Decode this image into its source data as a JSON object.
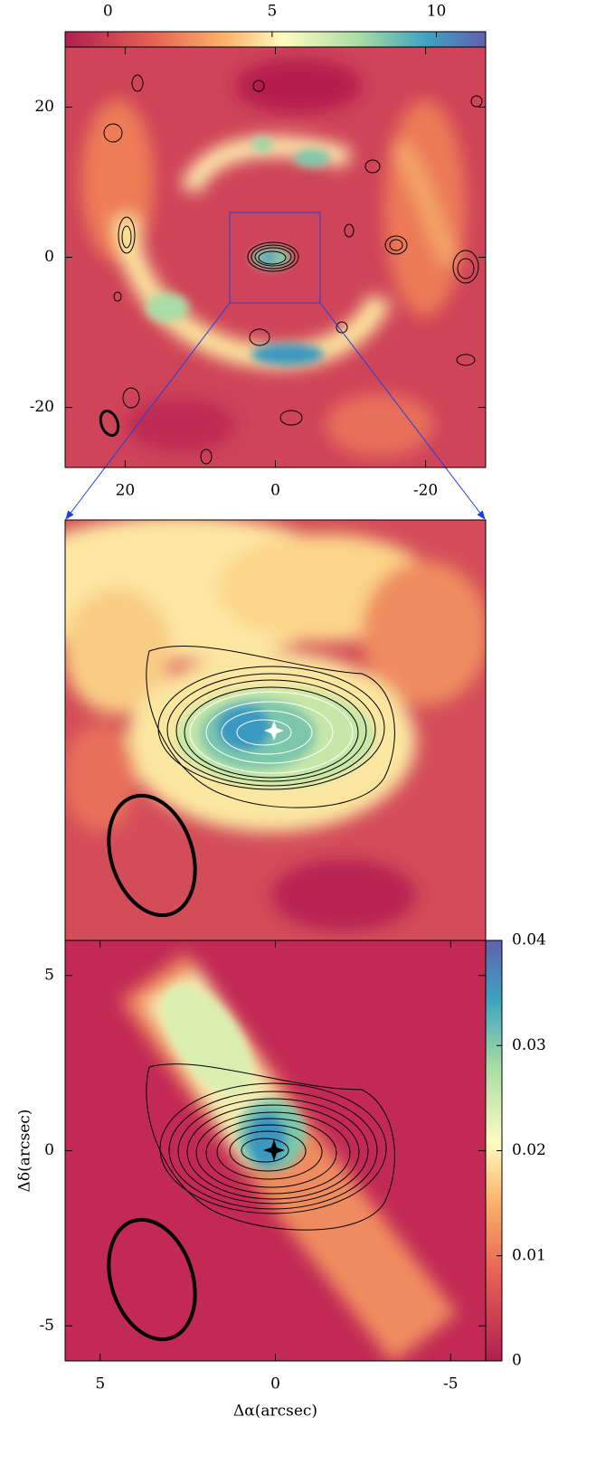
{
  "chart_data": [
    {
      "type": "image",
      "xlim": [
        28,
        -28
      ],
      "ylim": [
        -28,
        28
      ],
      "xticks": [
        20,
        0,
        -20
      ],
      "yticks": [
        20,
        0,
        -20
      ],
      "colorbar": {
        "lim": [
          -1.3,
          11.5
        ],
        "ticks": [
          0,
          5,
          10
        ]
      }
    },
    {
      "type": "image",
      "xlim": [
        6,
        -6
      ],
      "ylim": [
        -6,
        6
      ]
    },
    {
      "type": "image",
      "xlim": [
        6,
        -6
      ],
      "ylim": [
        -6,
        6
      ],
      "xticks": [
        5,
        0,
        -5
      ],
      "yticks": [
        5,
        0,
        -5
      ],
      "xlabel": "Δα(arcsec)",
      "ylabel": "Δδ(arcsec)",
      "colorbar": {
        "lim": [
          0,
          0.04
        ],
        "ticks": [
          0,
          0.01,
          0.02,
          0.03,
          0.04
        ]
      }
    }
  ]
}
